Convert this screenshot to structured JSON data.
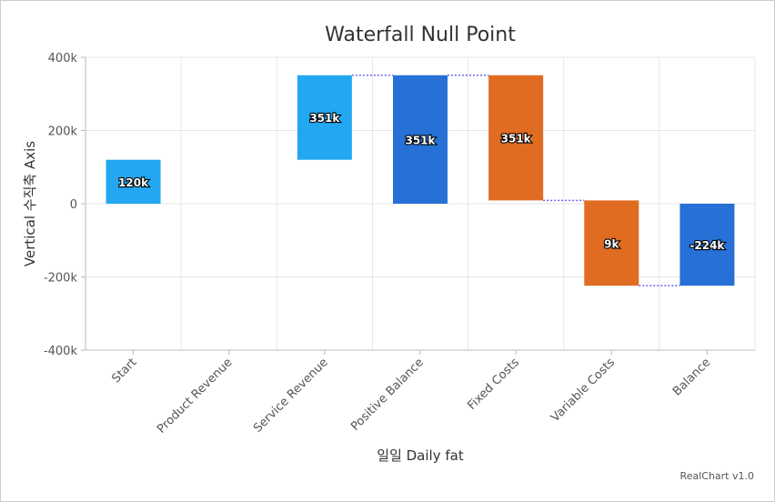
{
  "chart_data": {
    "type": "bar",
    "subtype": "waterfall",
    "title": "Waterfall Null Point",
    "xlabel": "일일 Daily fat",
    "ylabel": "Vertical 수직축 Axis",
    "ylim": [
      -400000,
      400000
    ],
    "yticks": [
      {
        "value": 400000,
        "label": "400k"
      },
      {
        "value": 200000,
        "label": "200k"
      },
      {
        "value": 0,
        "label": "0"
      },
      {
        "value": -200000,
        "label": "-200k"
      },
      {
        "value": -400000,
        "label": "-400k"
      }
    ],
    "grid": true,
    "categories": [
      "Start",
      "Product Revenue",
      "Service Revenue",
      "Positive Balance",
      "Fixed Costs",
      "Variable Costs",
      "Balance"
    ],
    "bars": [
      {
        "category": "Start",
        "low": 0,
        "high": 120000,
        "label": "120k",
        "color": "#22a7f0"
      },
      {
        "category": "Product Revenue",
        "low": null,
        "high": null,
        "label": "",
        "color": ""
      },
      {
        "category": "Service Revenue",
        "low": 120000,
        "high": 351000,
        "label": "351k",
        "color": "#22a7f0"
      },
      {
        "category": "Positive Balance",
        "low": 0,
        "high": 351000,
        "label": "351k",
        "color": "#2670d6"
      },
      {
        "category": "Fixed Costs",
        "low": 9000,
        "high": 351000,
        "label": "351k",
        "color": "#e06c22"
      },
      {
        "category": "Variable Costs",
        "low": -224000,
        "high": 9000,
        "label": "9k",
        "color": "#e06c22"
      },
      {
        "category": "Balance",
        "low": -224000,
        "high": 0,
        "label": "-224k",
        "color": "#2670d6"
      }
    ],
    "connectors": [
      {
        "from": 2,
        "to": 3,
        "value": 351000
      },
      {
        "from": 3,
        "to": 4,
        "value": 351000
      },
      {
        "from": 4,
        "to": 5,
        "value": 9000
      },
      {
        "from": 5,
        "to": 6,
        "value": -224000
      }
    ],
    "connector_color": "#6666ee"
  },
  "credit": "RealChart v1.0"
}
